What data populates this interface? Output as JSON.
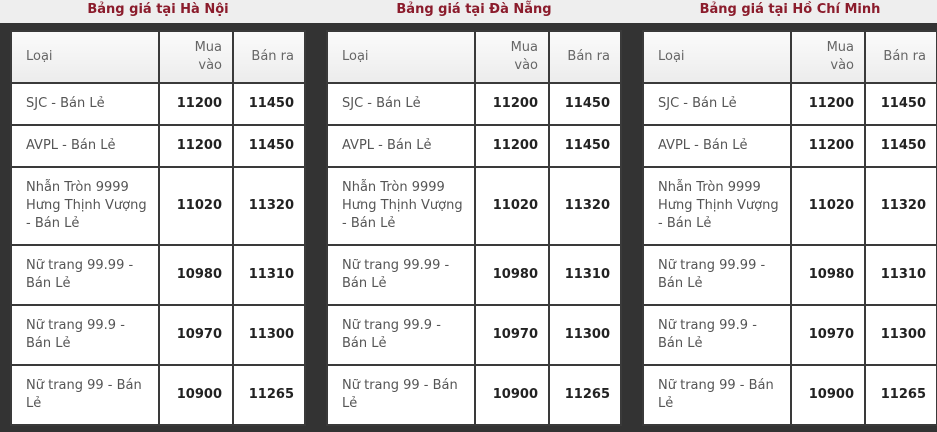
{
  "header": {
    "mua": "Mua vào",
    "ban": "Bán ra",
    "loai": "Loại"
  },
  "panels": [
    {
      "title": "Bảng giá tại Hà Nội"
    },
    {
      "title": "Bảng giá tại Đà Nẵng"
    },
    {
      "title": "Bảng giá tại Hồ Chí Minh"
    }
  ],
  "rows": [
    {
      "name": "SJC - Bán Lẻ",
      "buy": "11200",
      "sell": "11450"
    },
    {
      "name": "AVPL - Bán Lẻ",
      "buy": "11200",
      "sell": "11450"
    },
    {
      "name": "Nhẫn Tròn 9999 Hưng Thịnh Vượng - Bán Lẻ",
      "buy": "11020",
      "sell": "11320"
    },
    {
      "name": "Nữ trang 99.99 - Bán Lẻ",
      "buy": "10980",
      "sell": "11310"
    },
    {
      "name": "Nữ trang 99.9 - Bán Lẻ",
      "buy": "10970",
      "sell": "11300"
    },
    {
      "name": "Nữ trang 99 - Bán Lẻ",
      "buy": "10900",
      "sell": "11265"
    }
  ]
}
